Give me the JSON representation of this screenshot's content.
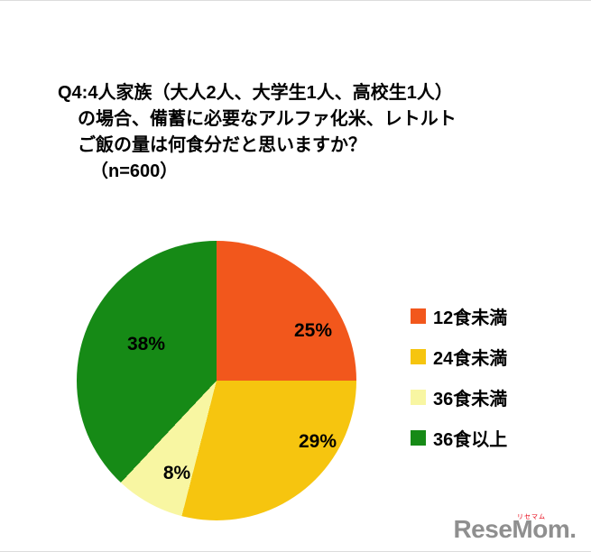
{
  "title": {
    "line1": "Q4:4人家族（大人2人、大学生1人、高校生1人）",
    "line2": "の場合、備蓄に必要なアルファ化米、レトルト",
    "line3": "ご飯の量は何食分だと思いますか？",
    "line4": "（n=600）"
  },
  "chart_data": {
    "type": "pie",
    "title": "Q4:4人家族（大人2人、大学生1人、高校生1人）の場合、備蓄に必要なアルファ化米、レトルトご飯の量は何食分だと思いますか？（n=600）",
    "sample_size_label": "（n=600）",
    "categories": [
      "12食未満",
      "24食未満",
      "36食未満",
      "36食以上"
    ],
    "values": [
      25,
      29,
      8,
      38
    ],
    "pct_labels": [
      "25%",
      "29%",
      "8%",
      "38%"
    ],
    "colors": [
      "#f2571c",
      "#f6c50f",
      "#f8f6a2",
      "#168a16"
    ],
    "legend_position": "right",
    "start_angle_deg": 0,
    "direction": "clockwise"
  },
  "logo": {
    "text": "ReseMom",
    "dot": ".",
    "subtext": "リセマム"
  }
}
